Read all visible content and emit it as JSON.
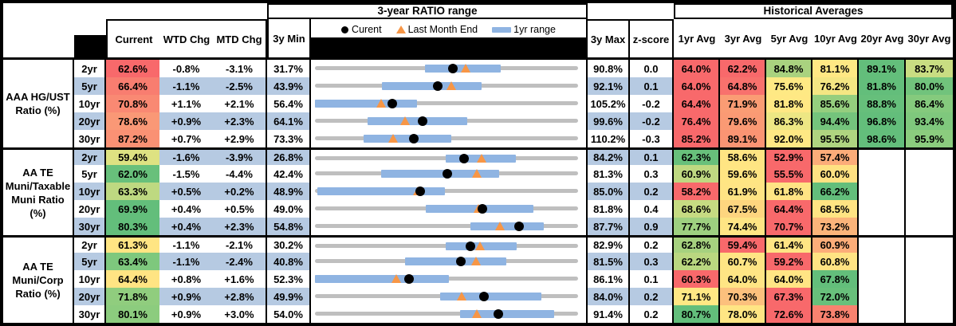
{
  "header": {
    "range_title": "3-year RATIO range",
    "hist_title": "Historical Averages",
    "current": "Current",
    "wtd": "WTD Chg",
    "mtd": "MTD Chg",
    "min3y": "3y Min",
    "max3y": "3y Max",
    "zscore": "z-score",
    "avgs": [
      "1yr Avg",
      "3yr Avg",
      "5yr Avg",
      "10yr Avg",
      "20yr Avg",
      "30yr Avg"
    ],
    "legend_current": "Curent",
    "legend_last_month": "Last Month End",
    "legend_range": "1yr range"
  },
  "colors": {
    "stripe_blue": "#B6CAE2",
    "bar_blue": "#8FB4E2",
    "track_gray": "#BFBFBF",
    "marker_orange": "#F79646",
    "marker_black": "#000000"
  },
  "chart_data": {
    "type": "table",
    "title": "3-year RATIO range",
    "legend": [
      "Curent",
      "Last Month End",
      "1yr range"
    ],
    "columns": [
      "Current",
      "WTD Chg",
      "MTD Chg",
      "3y Min",
      "3y range chart",
      "3y Max",
      "z-score",
      "1yr Avg",
      "3yr Avg",
      "5yr Avg",
      "10yr Avg",
      "20yr Avg",
      "30yr Avg"
    ],
    "groups": [
      {
        "label": "AAA HG/UST Ratio (%)",
        "label_lines": [
          "AAA HG/UST",
          "Ratio (%)"
        ],
        "rows": [
          {
            "tenor": "2yr",
            "current": 62.6,
            "cur_bg": "#F8696B",
            "wtd": -0.8,
            "mtd": -3.1,
            "min3y": 31.7,
            "max3y": 90.8,
            "z": 0.0,
            "lme": 65.7,
            "r1yr": [
              56.5,
              73.4
            ],
            "avgs": [
              64.0,
              62.2,
              84.8,
              81.1,
              89.1,
              83.7
            ],
            "avg_bg": [
              "#F8696B",
              "#F8696B",
              "#A9D27F",
              "#FFE884",
              "#63BE7B",
              "#C9DD82"
            ]
          },
          {
            "tenor": "5yr",
            "current": 66.4,
            "cur_bg": "#F87D70",
            "wtd": -1.1,
            "mtd": -2.5,
            "min3y": 43.9,
            "max3y": 92.1,
            "z": 0.1,
            "lme": 68.9,
            "r1yr": [
              56.2,
              74.4
            ],
            "avgs": [
              64.0,
              64.8,
              75.6,
              76.2,
              81.8,
              80.0
            ],
            "avg_bg": [
              "#F8696B",
              "#F8716D",
              "#FEE984",
              "#F4E683",
              "#63BE7B",
              "#71C37C"
            ]
          },
          {
            "tenor": "10yr",
            "current": 70.8,
            "cur_bg": "#F98973",
            "wtd": 1.1,
            "mtd": 2.1,
            "min3y": 56.4,
            "max3y": 105.2,
            "z": -0.2,
            "lme": 68.7,
            "r1yr": [
              56.4,
              75.4
            ],
            "avgs": [
              64.4,
              71.9,
              81.8,
              85.6,
              88.8,
              86.4
            ],
            "avg_bg": [
              "#F8696B",
              "#FA9C74",
              "#FFE884",
              "#95CE7E",
              "#66BF7B",
              "#85CA7D"
            ]
          },
          {
            "tenor": "20yr",
            "current": 78.6,
            "cur_bg": "#FA9876",
            "wtd": 0.9,
            "mtd": 2.3,
            "min3y": 64.1,
            "max3y": 99.6,
            "z": -0.2,
            "lme": 76.3,
            "r1yr": [
              71.2,
              84.7
            ],
            "avgs": [
              76.4,
              79.6,
              86.3,
              94.4,
              96.8,
              93.4
            ],
            "avg_bg": [
              "#F8696B",
              "#FA9A74",
              "#EDE784",
              "#74C47C",
              "#63BE7B",
              "#7FC87D"
            ]
          },
          {
            "tenor": "30yr",
            "current": 87.2,
            "cur_bg": "#FA9174",
            "wtd": 0.7,
            "mtd": 2.9,
            "min3y": 73.3,
            "max3y": 110.2,
            "z": -0.3,
            "lme": 84.3,
            "r1yr": [
              80.1,
              92.4
            ],
            "avgs": [
              85.2,
              89.1,
              92.0,
              95.5,
              98.6,
              95.9
            ],
            "avg_bg": [
              "#F8696B",
              "#FA9473",
              "#FFE884",
              "#AFD480",
              "#63BE7B",
              "#8BCC7E"
            ]
          }
        ]
      },
      {
        "label": "AA TE Muni/Taxable Muni Ratio (%)",
        "label_lines": [
          "AA TE",
          "Muni/Taxable",
          "Muni Ratio",
          "(%)"
        ],
        "rows": [
          {
            "tenor": "2yr",
            "current": 59.4,
            "cur_bg": "#DEE282",
            "wtd": -1.6,
            "mtd": -3.9,
            "min3y": 26.8,
            "max3y": 84.2,
            "z": 0.1,
            "lme": 63.3,
            "r1yr": [
              55.3,
              70.7
            ],
            "avgs": [
              62.3,
              58.6,
              52.9,
              57.4,
              null,
              null
            ],
            "avg_bg": [
              "#68C07B",
              "#FFE583",
              "#F8696B",
              "#FCAC79",
              null,
              null
            ]
          },
          {
            "tenor": "5yr",
            "current": 62.0,
            "cur_bg": "#68C07B",
            "wtd": -1.5,
            "mtd": -4.4,
            "min3y": 42.4,
            "max3y": 81.3,
            "z": 0.3,
            "lme": 66.4,
            "r1yr": [
              52.2,
              69.6
            ],
            "avgs": [
              60.9,
              59.6,
              55.5,
              60.0,
              null,
              null
            ],
            "avg_bg": [
              "#BFD981",
              "#FFE583",
              "#F8696B",
              "#FFE182",
              null,
              null
            ]
          },
          {
            "tenor": "10yr",
            "current": 63.3,
            "cur_bg": "#BED981",
            "wtd": 0.5,
            "mtd": 0.2,
            "min3y": 48.9,
            "max3y": 85.0,
            "z": 0.2,
            "lme": 63.1,
            "r1yr": [
              49.2,
              66.7
            ],
            "avgs": [
              58.2,
              61.9,
              61.8,
              66.2,
              null,
              null
            ],
            "avg_bg": [
              "#F8696B",
              "#FFE484",
              "#FFE484",
              "#63BE7B",
              null,
              null
            ]
          },
          {
            "tenor": "20yr",
            "current": 69.9,
            "cur_bg": "#63BE7B",
            "wtd": 0.4,
            "mtd": 0.5,
            "min3y": 49.0,
            "max3y": 81.8,
            "z": 0.4,
            "lme": 69.4,
            "r1yr": [
              62.8,
              76.2
            ],
            "avgs": [
              68.6,
              67.5,
              64.4,
              68.5,
              null,
              null
            ],
            "avg_bg": [
              "#C6DB82",
              "#FED57F",
              "#F8696B",
              "#FFE483",
              null,
              null
            ]
          },
          {
            "tenor": "30yr",
            "current": 80.3,
            "cur_bg": "#63BE7B",
            "wtd": 0.4,
            "mtd": 2.3,
            "min3y": 54.8,
            "max3y": 87.7,
            "z": 0.9,
            "lme": 78.0,
            "r1yr": [
              74.2,
              83.4
            ],
            "avgs": [
              77.7,
              74.4,
              70.7,
              73.2,
              null,
              null
            ],
            "avg_bg": [
              "#9ED080",
              "#FFE584",
              "#F8696B",
              "#FBB47A",
              null,
              null
            ]
          }
        ]
      },
      {
        "label": "AA TE Muni/Corp Ratio (%)",
        "label_lines": [
          "AA TE",
          "Muni/Corp",
          "Ratio (%)"
        ],
        "rows": [
          {
            "tenor": "2yr",
            "current": 61.3,
            "cur_bg": "#FFE583",
            "wtd": -1.1,
            "mtd": -2.1,
            "min3y": 30.2,
            "max3y": 82.9,
            "z": 0.2,
            "lme": 63.4,
            "r1yr": [
              56.4,
              70.6
            ],
            "avgs": [
              62.8,
              59.4,
              61.4,
              60.9,
              null,
              null
            ],
            "avg_bg": [
              "#A6D17F",
              "#F8696B",
              "#FFE584",
              "#FCAD79",
              null,
              null
            ]
          },
          {
            "tenor": "5yr",
            "current": 63.4,
            "cur_bg": "#7EC87D",
            "wtd": -1.1,
            "mtd": -2.4,
            "min3y": 40.8,
            "max3y": 81.5,
            "z": 0.3,
            "lme": 65.8,
            "r1yr": [
              54.7,
              70.4
            ],
            "avgs": [
              62.2,
              60.7,
              59.2,
              60.8,
              null,
              null
            ],
            "avg_bg": [
              "#BAD780",
              "#FFE584",
              "#F8696B",
              "#FFE383",
              null,
              null
            ]
          },
          {
            "tenor": "10yr",
            "current": 64.4,
            "cur_bg": "#FFE483",
            "wtd": 0.8,
            "mtd": 1.6,
            "min3y": 52.3,
            "max3y": 86.1,
            "z": 0.1,
            "lme": 62.8,
            "r1yr": [
              52.3,
              69.5
            ],
            "avgs": [
              60.3,
              64.0,
              64.0,
              67.8,
              null,
              null
            ],
            "avg_bg": [
              "#F8696B",
              "#FFE584",
              "#FFE584",
              "#63BE7B",
              null,
              null
            ]
          },
          {
            "tenor": "20yr",
            "current": 71.8,
            "cur_bg": "#90CD7E",
            "wtd": 0.9,
            "mtd": 2.8,
            "min3y": 49.9,
            "max3y": 84.0,
            "z": 0.2,
            "lme": 69.0,
            "r1yr": [
              66.1,
              79.2
            ],
            "avgs": [
              71.1,
              70.3,
              67.3,
              72.0,
              null,
              null
            ],
            "avg_bg": [
              "#FFE884",
              "#FCC07D",
              "#F8696B",
              "#68C07B",
              null,
              null
            ]
          },
          {
            "tenor": "30yr",
            "current": 80.1,
            "cur_bg": "#8CCC7E",
            "wtd": 0.9,
            "mtd": 3.0,
            "min3y": 54.0,
            "max3y": 91.4,
            "z": 0.2,
            "lme": 77.1,
            "r1yr": [
              74.6,
              88.0
            ],
            "avgs": [
              80.7,
              78.0,
              72.6,
              73.8,
              null,
              null
            ],
            "avg_bg": [
              "#63BE7B",
              "#FFE584",
              "#F8696B",
              "#F9826F",
              null,
              null
            ]
          }
        ]
      }
    ]
  }
}
